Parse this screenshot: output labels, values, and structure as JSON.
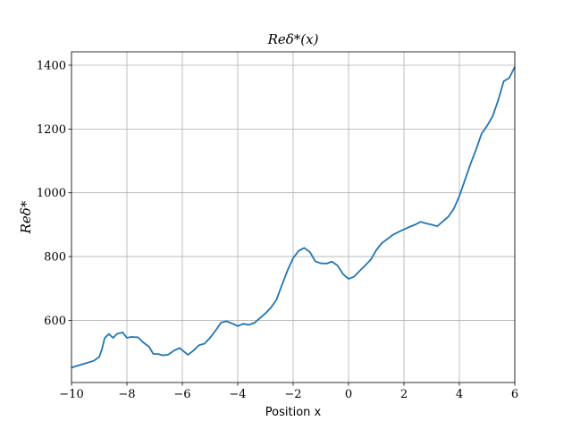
{
  "chart_data": {
    "type": "line",
    "title": "Reδ*(x)",
    "xlabel": "Position x",
    "ylabel": "Reδ*",
    "x": [
      -10,
      -9.5,
      -9.2,
      -9.0,
      -8.9,
      -8.8,
      -8.65,
      -8.5,
      -8.35,
      -8.15,
      -8.0,
      -7.85,
      -7.6,
      -7.4,
      -7.2,
      -7.05,
      -6.85,
      -6.7,
      -6.5,
      -6.3,
      -6.1,
      -5.95,
      -5.8,
      -5.6,
      -5.4,
      -5.2,
      -5.0,
      -4.8,
      -4.6,
      -4.4,
      -4.2,
      -4.0,
      -3.8,
      -3.6,
      -3.4,
      -3.2,
      -3.0,
      -2.8,
      -2.6,
      -2.4,
      -2.2,
      -2.0,
      -1.8,
      -1.6,
      -1.4,
      -1.2,
      -1.0,
      -0.8,
      -0.6,
      -0.4,
      -0.2,
      0,
      0.2,
      0.4,
      0.6,
      0.8,
      1.0,
      1.2,
      1.4,
      1.6,
      1.8,
      2.0,
      2.2,
      2.4,
      2.6,
      2.8,
      3.0,
      3.2,
      3.4,
      3.6,
      3.8,
      4.0,
      4.2,
      4.4,
      4.6,
      4.8,
      5.0,
      5.2,
      5.4,
      5.6,
      5.8,
      6.0
    ],
    "series": [
      {
        "name": "Reδ*",
        "color": "#1f77b4",
        "values": [
          452,
          465,
          473,
          485,
          510,
          545,
          557,
          545,
          558,
          562,
          545,
          548,
          547,
          530,
          517,
          495,
          494,
          490,
          493,
          505,
          513,
          503,
          492,
          505,
          522,
          527,
          545,
          568,
          593,
          597,
          590,
          582,
          589,
          586,
          592,
          607,
          622,
          640,
          665,
          712,
          757,
          795,
          818,
          827,
          815,
          785,
          779,
          778,
          784,
          772,
          745,
          730,
          737,
          755,
          772,
          790,
          820,
          842,
          855,
          868,
          877,
          885,
          893,
          900,
          909,
          904,
          900,
          895,
          910,
          925,
          950,
          990,
          1040,
          1090,
          1135,
          1185,
          1210,
          1240,
          1290,
          1350,
          1360,
          1395
        ]
      }
    ],
    "xlim": [
      -10,
      6
    ],
    "ylim": [
      405,
      1442
    ],
    "xticks": [
      {
        "value": -10,
        "label": "−10"
      },
      {
        "value": -8,
        "label": "−8"
      },
      {
        "value": -6,
        "label": "−6"
      },
      {
        "value": -4,
        "label": "−4"
      },
      {
        "value": -2,
        "label": "−2"
      },
      0,
      2,
      4,
      6
    ],
    "yticks": [
      600,
      800,
      1000,
      1200,
      1400
    ],
    "grid": true
  }
}
